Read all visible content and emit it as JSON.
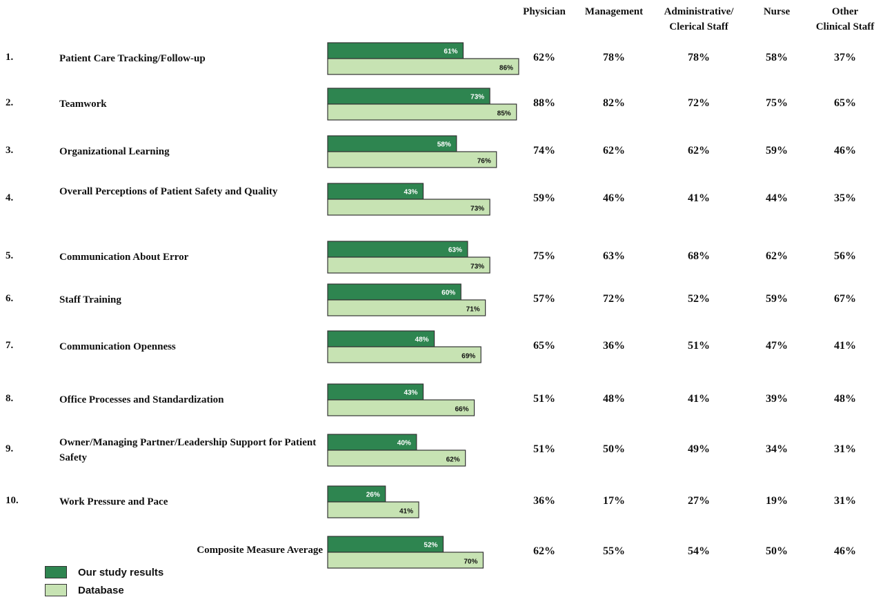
{
  "colors": {
    "study": "#2e8550",
    "database": "#c7e3b3",
    "border": "#333333"
  },
  "columns": [
    "Physician",
    "Management",
    "Administrative/\nClerical Staff",
    "Nurse",
    "Other\nClinical Staff"
  ],
  "legend": [
    {
      "label": "Our study results",
      "color": "#2e8550"
    },
    {
      "label": "Database",
      "color": "#c7e3b3"
    }
  ],
  "chart_data": {
    "type": "bar",
    "orientation": "horizontal",
    "categories": [
      "Patient Care Tracking/Follow-up",
      "Teamwork",
      "Organizational Learning",
      "Overall Perceptions of Patient Safety and Quality",
      "Communication About Error",
      "Staff Training",
      "Communication Openness",
      "Office Processes and Standardization",
      "Owner/Managing Partner/Leadership Support for Patient Safety",
      "Work Pressure and Pace",
      "Composite Measure Average"
    ],
    "numbers": [
      "1.",
      "2.",
      "3.",
      "4.",
      "5.",
      "6.",
      "7.",
      "8.",
      "9.",
      "10.",
      ""
    ],
    "series": [
      {
        "name": "Our study results",
        "values": [
          61,
          73,
          58,
          43,
          63,
          60,
          48,
          43,
          40,
          26,
          52
        ]
      },
      {
        "name": "Database",
        "values": [
          86,
          85,
          76,
          73,
          73,
          71,
          69,
          66,
          62,
          41,
          70
        ]
      }
    ],
    "bar_labels": {
      "study": [
        "61%",
        "73%",
        "58%",
        "43%",
        "63%",
        "60%",
        "48%",
        "43%",
        "40%",
        "26%",
        "52%"
      ],
      "database": [
        "86%",
        "85%",
        "76%",
        "73%",
        "73%",
        "71%",
        "69%",
        "66%",
        "62%",
        "41%",
        "70%"
      ]
    },
    "table": [
      [
        "62%",
        "78%",
        "78%",
        "58%",
        "37%"
      ],
      [
        "88%",
        "82%",
        "72%",
        "75%",
        "65%"
      ],
      [
        "74%",
        "62%",
        "62%",
        "59%",
        "46%"
      ],
      [
        "59%",
        "46%",
        "41%",
        "44%",
        "35%"
      ],
      [
        "75%",
        "63%",
        "68%",
        "62%",
        "56%"
      ],
      [
        "57%",
        "72%",
        "52%",
        "59%",
        "67%"
      ],
      [
        "65%",
        "36%",
        "51%",
        "47%",
        "41%"
      ],
      [
        "51%",
        "48%",
        "41%",
        "39%",
        "48%"
      ],
      [
        "51%",
        "50%",
        "49%",
        "34%",
        "31%"
      ],
      [
        "36%",
        "17%",
        "27%",
        "19%",
        "31%"
      ],
      [
        "62%",
        "55%",
        "54%",
        "50%",
        "46%"
      ]
    ]
  }
}
